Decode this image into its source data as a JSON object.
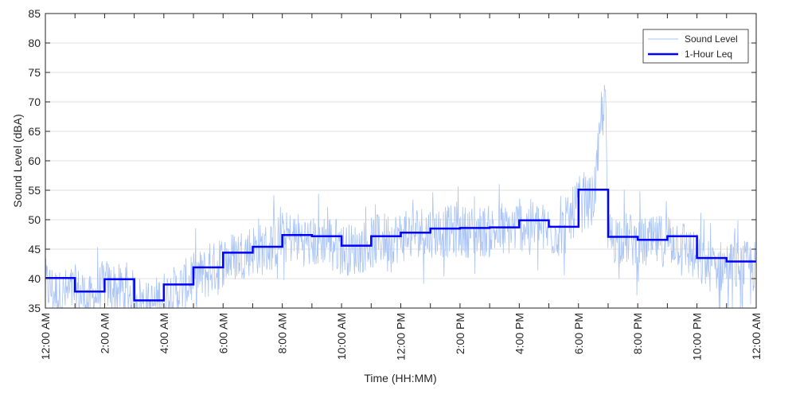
{
  "chart_data": {
    "type": "line",
    "title": "",
    "xlabel": "Time (HH:MM)",
    "ylabel": "Sound Level (dBA)",
    "xlim": [
      0,
      24
    ],
    "ylim": [
      35,
      85
    ],
    "yticks": [
      35,
      40,
      45,
      50,
      55,
      60,
      65,
      70,
      75,
      80,
      85
    ],
    "xticks": [
      0,
      2,
      4,
      6,
      8,
      10,
      12,
      14,
      16,
      18,
      20,
      22,
      24
    ],
    "xtick_labels": [
      "12:00 AM",
      "2:00 AM",
      "4:00 AM",
      "6:00 AM",
      "8:00 AM",
      "10:00 AM",
      "12:00 PM",
      "2:00 PM",
      "4:00 PM",
      "6:00 PM",
      "8:00 PM",
      "10:00 PM",
      "12:00 AM"
    ],
    "grid": "horizontal",
    "legend_position": "top-right",
    "colors": {
      "sound_level": "#a9c4f5",
      "leq": "#0000ff",
      "axis": "#262626",
      "grid": "#e0e0e0"
    },
    "series": [
      {
        "name": "Sound Level",
        "style": "thin",
        "x": [
          0.0,
          0.5,
          1.0,
          1.5,
          2.0,
          2.5,
          3.0,
          3.5,
          4.0,
          4.5,
          5.0,
          5.5,
          6.0,
          6.5,
          7.0,
          7.5,
          8.0,
          8.5,
          9.0,
          9.5,
          10.0,
          10.5,
          11.0,
          11.5,
          12.0,
          12.5,
          13.0,
          13.5,
          14.0,
          14.5,
          15.0,
          15.5,
          16.0,
          16.5,
          17.0,
          17.5,
          18.0,
          18.5,
          18.9,
          19.0,
          19.5,
          20.0,
          20.5,
          21.0,
          21.5,
          22.0,
          22.5,
          23.0,
          23.5,
          24.0
        ],
        "values": [
          39,
          37,
          38,
          36,
          39,
          38,
          37,
          35,
          37,
          38,
          40,
          41,
          43,
          44,
          45,
          45,
          47,
          47,
          46,
          47,
          45,
          45,
          46,
          47,
          47,
          48,
          48,
          48,
          48,
          48,
          48,
          48,
          49,
          49,
          48,
          48,
          53,
          53,
          72,
          47,
          47,
          46,
          46,
          47,
          46,
          43,
          42,
          42,
          42,
          42
        ]
      },
      {
        "name": "1-Hour Leq",
        "style": "step",
        "x": [
          0,
          1,
          2,
          3,
          4,
          5,
          6,
          7,
          8,
          9,
          10,
          11,
          12,
          13,
          14,
          15,
          16,
          17,
          18,
          19,
          20,
          21,
          22,
          23
        ],
        "values": [
          40.1,
          37.8,
          39.9,
          36.3,
          39.0,
          41.9,
          44.4,
          45.4,
          47.4,
          47.2,
          45.6,
          47.2,
          47.8,
          48.5,
          48.6,
          48.7,
          49.9,
          48.8,
          55.1,
          47.1,
          46.6,
          47.2,
          43.5,
          42.9
        ]
      }
    ]
  }
}
